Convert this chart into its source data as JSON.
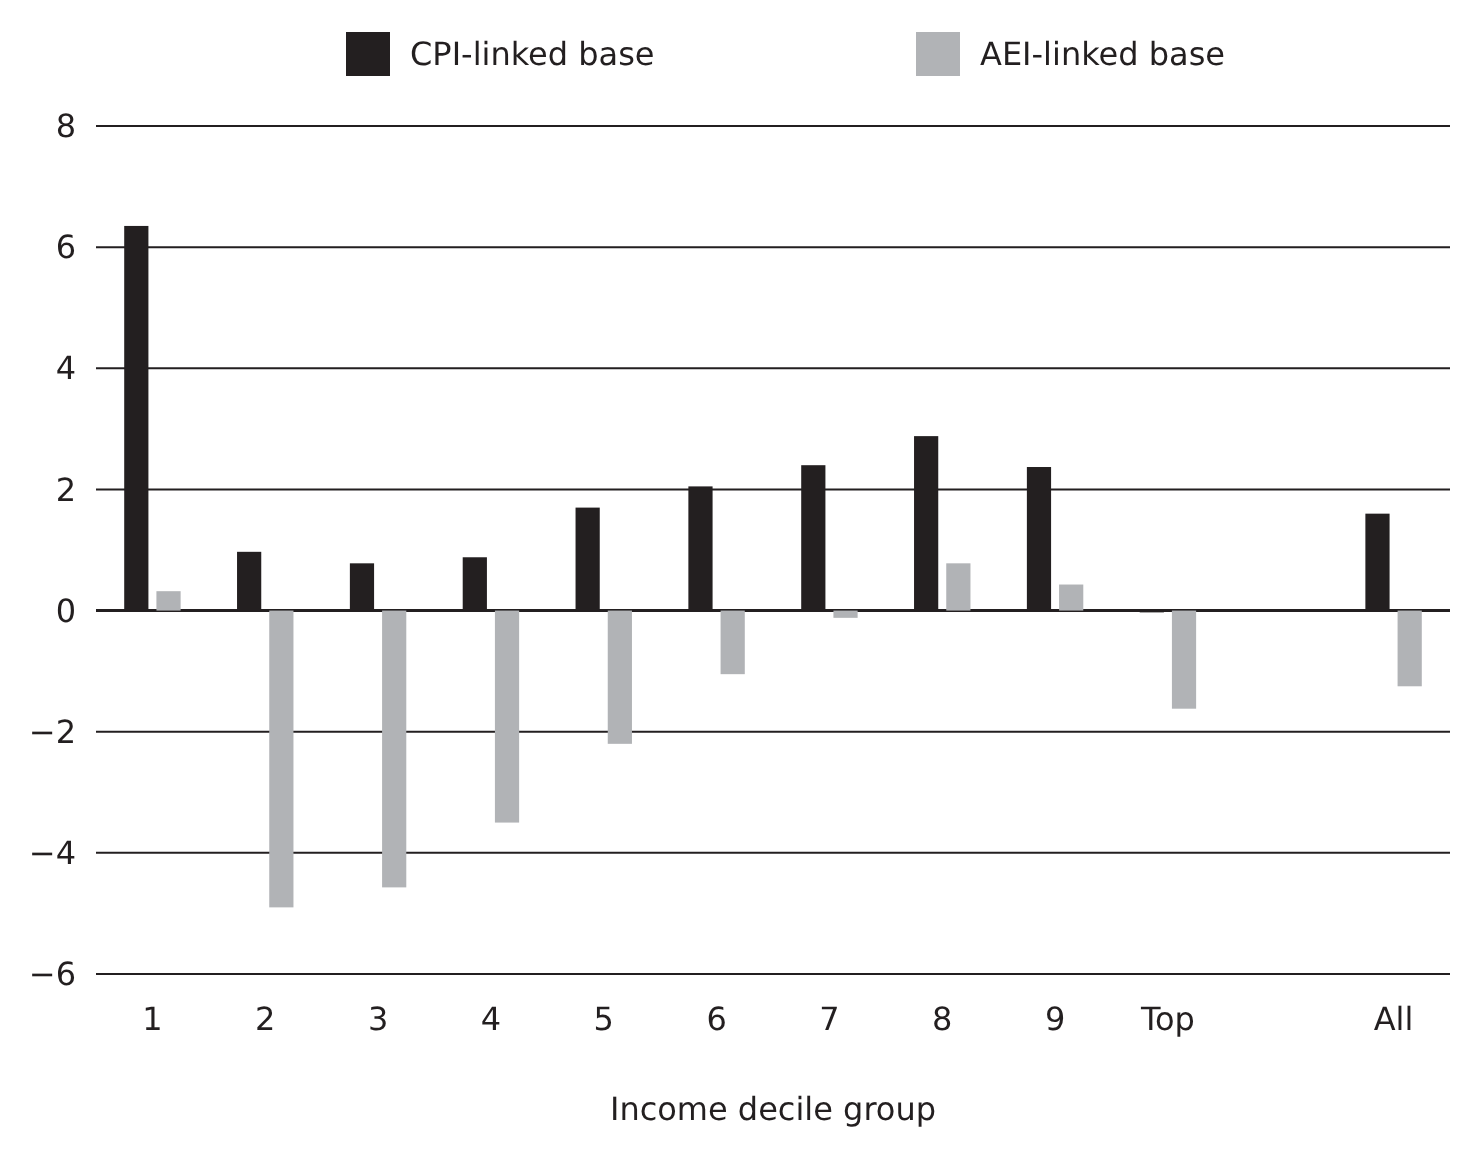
{
  "chart_data": {
    "type": "bar",
    "xlabel": "Income decile group",
    "categories": [
      "1",
      "2",
      "3",
      "4",
      "5",
      "6",
      "7",
      "8",
      "9",
      "Top",
      null,
      "All"
    ],
    "series": [
      {
        "name": "CPI-linked base",
        "color": "#231f20",
        "values": [
          6.35,
          0.97,
          0.78,
          0.88,
          1.7,
          2.05,
          2.4,
          2.88,
          2.37,
          -0.03,
          null,
          1.6
        ]
      },
      {
        "name": "AEI-linked base",
        "color": "#b1b3b6",
        "values": [
          0.32,
          -4.9,
          -4.57,
          -3.5,
          -2.2,
          -1.05,
          -0.12,
          0.78,
          0.43,
          -1.62,
          null,
          -1.25
        ]
      }
    ],
    "ylim": [
      -6,
      8
    ],
    "yticks": [
      {
        "value": -6,
        "label": "−6"
      },
      {
        "value": -4,
        "label": "−4"
      },
      {
        "value": -2,
        "label": "−2"
      },
      0,
      2,
      4,
      6,
      8
    ],
    "grid": "y",
    "legend": "top"
  }
}
